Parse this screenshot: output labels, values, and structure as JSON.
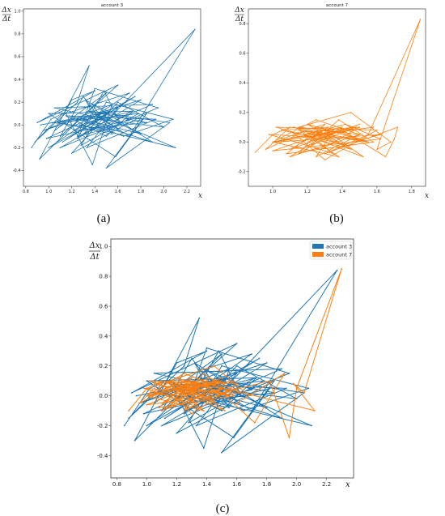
{
  "captions": [
    "(a)",
    "(b)",
    "(c)"
  ],
  "ylabel_num": "Δx",
  "ylabel_den": "Δt",
  "xlabel": "x",
  "colors": {
    "account3": "#1f77b4",
    "account7": "#ff7f0e"
  },
  "chart_data": [
    {
      "type": "line",
      "title": "account 3",
      "xlabel": "x",
      "ylabel": "Δx/Δt",
      "xlim": [
        0.78,
        2.32
      ],
      "ylim": [
        -0.54,
        1.02
      ],
      "xticks": [
        "0.8",
        "1.0",
        "1.2",
        "1.4",
        "1.6",
        "1.8",
        "2.0",
        "2.2"
      ],
      "yticks": [
        "-0.4",
        "-0.2",
        "0.0",
        "0.2",
        "0.4",
        "0.6",
        "0.8",
        "1.0"
      ],
      "series": [
        {
          "name": "account 3",
          "color": "#1f77b4",
          "x": [
            0.85,
            1.02,
            1.12,
            0.88,
            1.25,
            1.35,
            0.92,
            1.5,
            1.05,
            1.2,
            1.4,
            0.9,
            1.6,
            1.1,
            1.3,
            1.45,
            1.0,
            1.7,
            1.15,
            1.38,
            1.55,
            0.95,
            1.8,
            1.25,
            1.48,
            1.62,
            1.05,
            1.9,
            1.3,
            1.52,
            1.75,
            1.12,
            1.42,
            2.0,
            1.6,
            1.2,
            1.85,
            1.5,
            2.05,
            1.35,
            1.7,
            2.27,
            1.52,
            1.1,
            1.95,
            1.4,
            1.25,
            1.82,
            1.58,
            1.0,
            1.72,
            1.45,
            1.32,
            1.9,
            1.18,
            1.65,
            2.08,
            1.5,
            1.28,
            1.78,
            1.08,
            1.55,
            1.38,
            1.7,
            0.98,
            1.45,
            1.85,
            1.22,
            1.6,
            1.33,
            1.93,
            1.15,
            1.5,
            1.73,
            1.27,
            2.1,
            1.4,
            1.62,
            1.03,
            1.48,
            1.8,
            1.3,
            1.55,
            0.93
          ],
          "y": [
            -0.2,
            0.05,
            0.1,
            -0.15,
            0.2,
            0.52,
            -0.3,
            0.28,
            -0.05,
            0.22,
            0.3,
            0.02,
            0.35,
            -0.1,
            0.25,
            0.05,
            -0.2,
            0.28,
            0.1,
            -0.35,
            0.18,
            -0.05,
            0.22,
            -0.12,
            0.3,
            0.02,
            0.15,
            0.18,
            -0.08,
            0.12,
            0.25,
            -0.15,
            0.05,
            -0.02,
            0.2,
            -0.25,
            0.1,
            -0.38,
            0.02,
            0.12,
            -0.1,
            0.84,
            0.05,
            -0.2,
            0.15,
            0.32,
            -0.1,
            0.05,
            -0.28,
            0.1,
            0.12,
            -0.05,
            0.22,
            -0.15,
            0.08,
            -0.1,
            0.05,
            0.2,
            -0.18,
            0.1,
            0.02,
            -0.08,
            0.18,
            0.04,
            -0.12,
            0.1,
            0.02,
            -0.05,
            0.15,
            -0.2,
            0.05,
            0.08,
            -0.1,
            0.12,
            0.0,
            -0.2,
            0.1,
            -0.05,
            0.02,
            0.08,
            -0.08,
            0.05,
            0.12,
            0.0
          ]
        }
      ]
    },
    {
      "type": "line",
      "title": "account 7",
      "xlabel": "x",
      "ylabel": "Δx/Δt",
      "xlim": [
        0.86,
        1.88
      ],
      "ylim": [
        -0.3,
        0.9
      ],
      "xticks": [
        "1.0",
        "1.2",
        "1.4",
        "1.6",
        "1.8"
      ],
      "yticks": [
        "-0.2",
        "0.0",
        "0.2",
        "0.4",
        "0.6",
        "0.8"
      ],
      "series": [
        {
          "name": "account 7",
          "color": "#ff7f0e",
          "x": [
            0.9,
            1.0,
            1.1,
            0.96,
            1.2,
            1.05,
            1.3,
            1.15,
            1.4,
            1.0,
            1.25,
            1.5,
            1.1,
            1.35,
            1.55,
            1.2,
            1.45,
            1.02,
            1.6,
            1.3,
            1.12,
            1.48,
            1.22,
            1.38,
            1.58,
            1.08,
            1.28,
            1.52,
            1.18,
            1.42,
            1.62,
            1.0,
            1.35,
            1.25,
            1.5,
            1.15,
            1.45,
            1.68,
            1.6,
            1.85,
            1.55,
            1.3,
            1.72,
            1.7,
            1.65,
            1.4,
            1.2,
            1.5,
            1.1,
            1.32,
            1.05,
            1.42,
            1.25,
            1.58,
            1.0,
            1.38,
            1.15,
            1.48,
            0.98,
            1.28,
            1.5,
            1.08,
            1.35,
            1.2,
            1.55,
            1.12,
            1.4,
            1.62,
            1.02
          ],
          "y": [
            -0.07,
            0.05,
            0.1,
            -0.05,
            0.08,
            0.02,
            0.12,
            -0.08,
            0.1,
            0.0,
            0.15,
            0.05,
            -0.1,
            0.08,
            0.0,
            0.12,
            -0.05,
            0.1,
            0.08,
            -0.12,
            0.06,
            0.1,
            -0.02,
            0.15,
            0.0,
            -0.08,
            0.1,
            -0.1,
            0.05,
            0.12,
            0.02,
            -0.06,
            0.08,
            -0.1,
            0.05,
            0.1,
            0.2,
            0.0,
            -0.05,
            0.83,
            0.05,
            -0.08,
            0.1,
            0.02,
            -0.1,
            0.08,
            0.0,
            0.12,
            -0.05,
            0.1,
            0.08,
            -0.02,
            0.05,
            0.1,
            0.0,
            -0.1,
            0.08,
            0.02,
            0.05,
            -0.05,
            0.1,
            0.02,
            -0.08,
            0.06,
            0.0,
            0.1,
            -0.02,
            0.05,
            0.0
          ]
        }
      ]
    },
    {
      "type": "line",
      "xlabel": "x",
      "ylabel": "Δx/Δt",
      "xlim": [
        0.76,
        2.38
      ],
      "ylim": [
        -0.55,
        1.05
      ],
      "legend": "top-right",
      "xticks": [
        "0.8",
        "1.0",
        "1.2",
        "1.4",
        "1.6",
        "1.8",
        "2.0",
        "2.2"
      ],
      "yticks": [
        "-0.4",
        "-0.2",
        "0.0",
        "0.2",
        "0.4",
        "0.6",
        "0.8",
        "1.0"
      ],
      "series": [
        {
          "name": "account 3",
          "color": "#1f77b4",
          "x": [
            0.85,
            1.02,
            1.12,
            0.88,
            1.25,
            1.35,
            0.92,
            1.5,
            1.05,
            1.2,
            1.4,
            0.9,
            1.6,
            1.1,
            1.3,
            1.45,
            1.0,
            1.7,
            1.15,
            1.38,
            1.55,
            0.95,
            1.8,
            1.25,
            1.48,
            1.62,
            1.05,
            1.9,
            1.3,
            1.52,
            1.75,
            1.12,
            1.42,
            2.0,
            1.6,
            1.2,
            1.85,
            1.5,
            2.05,
            1.35,
            1.7,
            2.27,
            1.52,
            1.1,
            1.95,
            1.4,
            1.25,
            1.82,
            1.58,
            1.0,
            1.72,
            1.45,
            1.32,
            1.9,
            1.18,
            1.65,
            2.08,
            1.5,
            1.28,
            1.78,
            1.08,
            1.55,
            1.38,
            1.7,
            0.98,
            1.45,
            1.85,
            1.22,
            1.6,
            1.33,
            1.93,
            1.15,
            1.5,
            1.73,
            1.27,
            2.1,
            1.4,
            1.62,
            1.03,
            1.48,
            1.8,
            1.3,
            1.55,
            0.93
          ],
          "y": [
            -0.2,
            0.05,
            0.1,
            -0.15,
            0.2,
            0.52,
            -0.3,
            0.28,
            -0.05,
            0.22,
            0.3,
            0.02,
            0.35,
            -0.1,
            0.25,
            0.05,
            -0.2,
            0.28,
            0.1,
            -0.35,
            0.18,
            -0.05,
            0.22,
            -0.12,
            0.3,
            0.02,
            0.15,
            0.18,
            -0.08,
            0.12,
            0.25,
            -0.15,
            0.05,
            -0.02,
            0.2,
            -0.25,
            0.1,
            -0.38,
            0.02,
            0.12,
            -0.1,
            0.84,
            0.05,
            -0.2,
            0.15,
            0.32,
            -0.1,
            0.05,
            -0.28,
            0.1,
            0.12,
            -0.05,
            0.22,
            -0.15,
            0.08,
            -0.1,
            0.05,
            0.2,
            -0.18,
            0.1,
            0.02,
            -0.08,
            0.18,
            0.04,
            -0.12,
            0.1,
            0.02,
            -0.05,
            0.15,
            -0.2,
            0.05,
            0.08,
            -0.1,
            0.12,
            0.0,
            -0.2,
            0.1,
            -0.05,
            0.02,
            0.08,
            -0.08,
            0.05,
            0.12,
            0.0
          ]
        },
        {
          "name": "account 7",
          "color": "#ff7f0e",
          "x": [
            0.88,
            1.0,
            1.1,
            0.95,
            1.2,
            1.05,
            1.3,
            1.15,
            1.4,
            1.0,
            1.25,
            1.5,
            1.1,
            1.35,
            1.55,
            1.2,
            1.45,
            1.02,
            1.6,
            1.3,
            1.12,
            1.48,
            1.22,
            1.38,
            1.58,
            1.08,
            1.28,
            1.52,
            1.18,
            1.42,
            1.62,
            1.0,
            1.35,
            1.25,
            1.5,
            1.15,
            1.45,
            1.68,
            1.6,
            1.92,
            1.72,
            1.5,
            1.82,
            1.95,
            2.0,
            2.3,
            2.05,
            1.98,
            2.12,
            1.4,
            1.2,
            1.5,
            1.1,
            1.32,
            1.05,
            1.42,
            1.25,
            1.58,
            1.0,
            1.38,
            1.15,
            1.48,
            0.98,
            1.28,
            1.5,
            1.08,
            1.35,
            1.2,
            1.55,
            1.12,
            1.4,
            1.62,
            1.02
          ],
          "y": [
            -0.1,
            0.05,
            0.1,
            -0.05,
            0.08,
            0.02,
            0.12,
            -0.08,
            0.1,
            0.0,
            0.15,
            0.05,
            -0.1,
            0.08,
            0.0,
            0.12,
            -0.05,
            0.1,
            0.08,
            -0.12,
            0.06,
            0.1,
            -0.02,
            0.15,
            0.0,
            -0.08,
            0.1,
            -0.1,
            0.05,
            0.12,
            0.02,
            -0.06,
            0.08,
            -0.1,
            0.05,
            0.1,
            0.2,
            0.0,
            -0.05,
            0.15,
            -0.18,
            0.02,
            0.1,
            -0.28,
            0.05,
            0.85,
            0.02,
            0.08,
            -0.1,
            0.08,
            0.0,
            0.12,
            -0.05,
            0.1,
            0.08,
            -0.02,
            0.05,
            0.1,
            0.0,
            -0.1,
            0.08,
            0.02,
            0.05,
            -0.05,
            0.1,
            0.02,
            -0.08,
            0.06,
            0.0,
            0.1,
            -0.02,
            0.05,
            0.0
          ]
        }
      ]
    }
  ]
}
